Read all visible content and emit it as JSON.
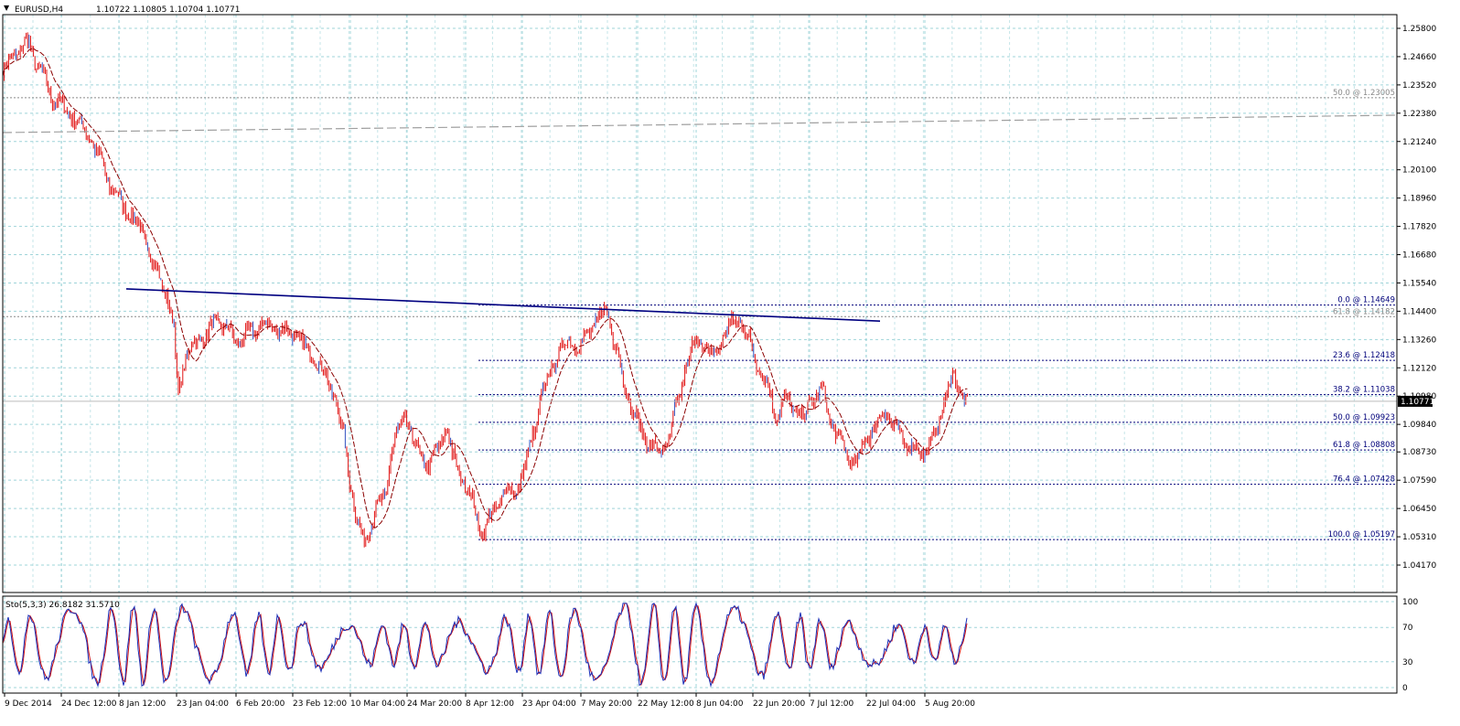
{
  "header": {
    "symbol_tf": "EURUSD,H4",
    "ohlc": "1.10722 1.10805 1.10704 1.10771"
  },
  "oscillator": {
    "title": "Sto(5,3,3) 26.8182 31.5710",
    "levels": [
      "100",
      "70",
      "30",
      "0"
    ]
  },
  "current_price_tag": "1.10771",
  "colors": {
    "candle": "#e01010",
    "wick_alt": "#3050c0",
    "ma": "#8b0000",
    "grid": "#9fd4d9",
    "trendline": "#000080",
    "fib": "#00007a",
    "fib_upper": "#8a8a8a",
    "long_ma": "#a0a0a0",
    "sto_main": "#1a2fb8",
    "sto_signal": "#d01010"
  },
  "chart_data": {
    "type": "line",
    "title": "EURUSD,H4",
    "ylim": [
      1.0417,
      1.2637
    ],
    "y_ticks": [
      "1.25800",
      "1.24660",
      "1.23520",
      "1.22380",
      "1.21240",
      "1.20100",
      "1.18960",
      "1.17820",
      "1.16680",
      "1.15540",
      "1.14400",
      "1.13260",
      "1.12120",
      "1.10980",
      "1.09840",
      "1.08730",
      "1.07590",
      "1.06450",
      "1.05310",
      "1.04170"
    ],
    "x_ticks": [
      "9 Dec 2014",
      "24 Dec 12:00",
      "8 Jan 12:00",
      "23 Jan 04:00",
      "6 Feb 20:00",
      "23 Feb 12:00",
      "10 Mar 04:00",
      "24 Mar 20:00",
      "8 Apr 12:00",
      "23 Apr 04:00",
      "7 May 20:00",
      "22 May 12:00",
      "8 Jun 04:00",
      "22 Jun 20:00",
      "7 Jul 12:00",
      "22 Jul 04:00",
      "5 Aug 20:00"
    ],
    "series": [
      {
        "x": [
          0,
          14,
          28,
          38,
          55,
          75,
          95,
          105,
          120,
          135,
          150,
          165,
          178,
          186,
          192,
          195,
          200,
          210,
          220,
          235,
          245,
          255,
          270,
          285,
          300,
          318,
          335,
          350,
          362,
          372,
          380,
          388,
          395,
          402,
          410,
          418,
          425,
          432,
          440,
          450,
          458,
          466,
          475,
          485,
          492,
          500,
          508,
          515,
          520,
          526,
          532,
          540,
          550,
          560,
          570,
          580,
          590,
          600,
          610,
          620,
          630,
          640,
          650,
          660,
          670,
          680,
          690,
          700,
          708,
          718,
          728,
          738,
          748,
          758,
          768,
          778,
          788,
          798,
          806,
          815,
          825,
          835,
          845,
          855,
          865,
          875,
          885,
          895,
          905,
          915,
          925,
          935,
          943,
          955,
          965,
          975,
          985,
          995,
          1005,
          1015,
          1022,
          1030,
          1038,
          1046,
          1055
        ],
        "y": [
          1.241,
          1.248,
          1.252,
          1.243,
          1.23,
          1.223,
          1.215,
          1.206,
          1.193,
          1.185,
          1.178,
          1.163,
          1.152,
          1.14,
          1.11,
          1.118,
          1.126,
          1.131,
          1.134,
          1.14,
          1.137,
          1.132,
          1.135,
          1.139,
          1.137,
          1.135,
          1.128,
          1.12,
          1.11,
          1.095,
          1.075,
          1.058,
          1.052,
          1.058,
          1.065,
          1.07,
          1.088,
          1.095,
          1.102,
          1.09,
          1.085,
          1.082,
          1.088,
          1.097,
          1.085,
          1.079,
          1.072,
          1.066,
          1.058,
          1.055,
          1.06,
          1.066,
          1.072,
          1.071,
          1.08,
          1.095,
          1.11,
          1.122,
          1.128,
          1.133,
          1.129,
          1.136,
          1.14,
          1.145,
          1.13,
          1.114,
          1.102,
          1.095,
          1.09,
          1.087,
          1.092,
          1.108,
          1.123,
          1.133,
          1.129,
          1.126,
          1.135,
          1.139,
          1.141,
          1.132,
          1.123,
          1.114,
          1.103,
          1.108,
          1.105,
          1.101,
          1.109,
          1.112,
          1.1,
          1.092,
          1.085,
          1.083,
          1.093,
          1.098,
          1.104,
          1.097,
          1.092,
          1.089,
          1.087,
          1.091,
          1.097,
          1.11,
          1.117,
          1.112,
          1.108
        ]
      }
    ],
    "fib_levels": [
      {
        "label": "0.0 @ 1.14649",
        "price": 1.14649
      },
      {
        "label": "23.6 @ 1.12418",
        "price": 1.12418
      },
      {
        "label": "38.2 @ 1.11038",
        "price": 1.11038
      },
      {
        "label": "50.0 @ 1.09923",
        "price": 1.09923
      },
      {
        "label": "61.8 @ 1.08808",
        "price": 1.08808
      },
      {
        "label": "76.4 @ 1.07428",
        "price": 1.07428
      },
      {
        "label": "100.0 @ 1.05197",
        "price": 1.05197
      }
    ],
    "fib_upper_levels": [
      {
        "label": "50.0 @ 1.23005",
        "price": 1.23005
      },
      {
        "label": "61.8 @ 1.14182",
        "price": 1.14182
      }
    ]
  }
}
